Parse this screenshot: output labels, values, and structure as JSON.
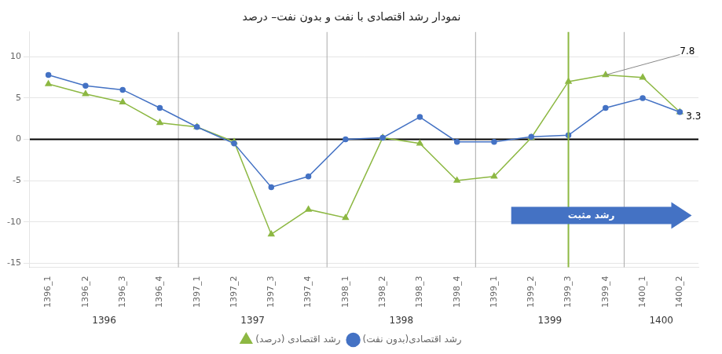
{
  "chart_data": {
    "type": "line",
    "title": "نمودار رشد اقتصادی با نفت و بدون نفت– درصد",
    "categories": [
      "1396_1",
      "1396_2",
      "1396_3",
      "1396_4",
      "1397_1",
      "1397_2",
      "1397_3",
      "1397_4",
      "1398_1",
      "1398_2",
      "1398_3",
      "1398_4",
      "1399_1",
      "1399_2",
      "1399_3",
      "1399_4",
      "1400_1",
      "1400_2"
    ],
    "series": [
      {
        "name": "رشد اقتصادی(بدون نفت)",
        "color": "#4472C4",
        "marker": "circle",
        "values": [
          7.8,
          6.5,
          6.0,
          3.8,
          1.5,
          -0.5,
          -5.8,
          -4.5,
          0.0,
          0.2,
          2.7,
          -0.3,
          -0.3,
          0.3,
          0.5,
          3.8,
          5.0,
          3.3
        ]
      },
      {
        "name": "رشد اقتصادی (درصد)",
        "color": "#8DB843",
        "marker": "triangle",
        "values": [
          6.7,
          5.5,
          4.5,
          2.0,
          1.5,
          -0.3,
          -11.5,
          -8.5,
          -9.5,
          0.2,
          -0.5,
          -5.0,
          -4.5,
          0.2,
          7.0,
          7.8,
          7.5,
          3.3
        ]
      }
    ],
    "ylim": [
      -15.5,
      13.0
    ],
    "yticks": [
      -15,
      -10,
      -5,
      0,
      5,
      10
    ],
    "grid": "y",
    "legend": "bottom",
    "groups": [
      {
        "label": "1396",
        "from": "1396_1",
        "to": "1396_4"
      },
      {
        "label": "1397",
        "from": "1397_1",
        "to": "1397_4"
      },
      {
        "label": "1398",
        "from": "1398_1",
        "to": "1398_4"
      },
      {
        "label": "1399",
        "from": "1399_1",
        "to": "1399_4"
      },
      {
        "label": "1400",
        "from": "1400_1",
        "to": "1400_2"
      }
    ],
    "hlines": [
      {
        "y": 0,
        "color": "#000000"
      }
    ],
    "vlines": [
      {
        "x": "1399_3",
        "color": "#8DB843"
      }
    ],
    "annotations": [
      {
        "text": "7.8",
        "x": "1399_4",
        "y": 7.8,
        "leader": true
      },
      {
        "text": "3.3",
        "x": "1400_2",
        "y": 3.3,
        "leader": false
      }
    ],
    "arrow": {
      "text": "رشد مثبت",
      "direction": "right",
      "color": "#4472C4"
    }
  }
}
